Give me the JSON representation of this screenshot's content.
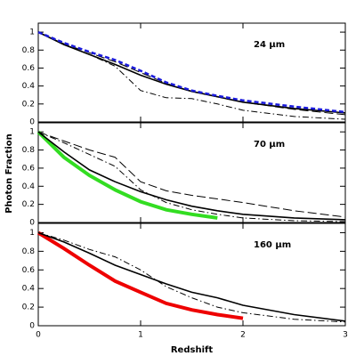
{
  "chart_data": [
    {
      "type": "line",
      "annotation": "24 μm",
      "x": [
        0,
        0.25,
        0.5,
        0.75,
        1,
        1.25,
        1.5,
        1.75,
        2,
        2.5,
        3
      ],
      "xlim": [
        0,
        3
      ],
      "ylim": [
        0,
        1.1
      ],
      "yticks": [
        0,
        0.2,
        0.4,
        0.6,
        0.8,
        1
      ],
      "series": [
        {
          "color": "#000000",
          "dash": "solid",
          "width": 1.6,
          "values": [
            1,
            0.86,
            0.75,
            0.64,
            0.52,
            0.42,
            0.34,
            0.28,
            0.22,
            0.15,
            0.1
          ]
        },
        {
          "color": "#000000",
          "dash": "long",
          "width": 1,
          "values": [
            1,
            0.87,
            0.77,
            0.67,
            0.55,
            0.43,
            0.34,
            0.28,
            0.22,
            0.14,
            0.08
          ]
        },
        {
          "color": "#000000",
          "dash": "dashdot",
          "width": 1,
          "values": [
            1,
            0.87,
            0.75,
            0.62,
            0.35,
            0.27,
            0.26,
            0.2,
            0.13,
            0.06,
            0.03
          ]
        },
        {
          "color": "#1a1adc",
          "dash": "short",
          "width": 2.5,
          "values": [
            1,
            0.88,
            0.78,
            0.69,
            0.57,
            0.44,
            0.35,
            0.29,
            0.24,
            0.17,
            0.11
          ]
        }
      ]
    },
    {
      "type": "line",
      "annotation": "70 μm",
      "ylabel": "Photon Fraction",
      "x": [
        0,
        0.25,
        0.5,
        0.75,
        1,
        1.25,
        1.5,
        1.75,
        2,
        2.5,
        3
      ],
      "xlim": [
        0,
        3
      ],
      "ylim": [
        0,
        1.1
      ],
      "yticks": [
        0,
        0.2,
        0.4,
        0.6,
        0.8,
        1
      ],
      "series": [
        {
          "color": "#33dd22",
          "dash": "solid",
          "width": 4,
          "values": [
            1,
            0.72,
            0.52,
            0.36,
            0.23,
            0.14,
            0.09,
            0.05,
            null,
            null,
            null
          ]
        },
        {
          "color": "#000000",
          "dash": "solid",
          "width": 1.6,
          "values": [
            1,
            0.78,
            0.58,
            0.45,
            0.34,
            0.25,
            0.18,
            0.13,
            0.09,
            0.05,
            0.03
          ]
        },
        {
          "color": "#000000",
          "dash": "long",
          "width": 1,
          "values": [
            1,
            0.9,
            0.8,
            0.72,
            0.45,
            0.35,
            0.3,
            0.26,
            0.22,
            0.13,
            0.06
          ]
        },
        {
          "color": "#000000",
          "dash": "dashdot",
          "width": 1,
          "values": [
            1,
            0.88,
            0.75,
            0.62,
            0.36,
            0.22,
            0.14,
            0.09,
            0.05,
            0.02,
            0.01
          ]
        }
      ]
    },
    {
      "type": "line",
      "annotation": "160 μm",
      "xlabel": "Redshift",
      "x": [
        0,
        0.25,
        0.5,
        0.75,
        1,
        1.25,
        1.5,
        1.75,
        2,
        2.5,
        3
      ],
      "xlim": [
        0,
        3
      ],
      "xticks": [
        0,
        1,
        2,
        3
      ],
      "ylim": [
        0,
        1.1
      ],
      "yticks": [
        0,
        0.2,
        0.4,
        0.6,
        0.8,
        1
      ],
      "series": [
        {
          "color": "#ee0000",
          "dash": "solid",
          "width": 4,
          "values": [
            1,
            0.83,
            0.65,
            0.48,
            0.36,
            0.24,
            0.17,
            0.12,
            0.08,
            null,
            null
          ]
        },
        {
          "color": "#000000",
          "dash": "solid",
          "width": 1.6,
          "values": [
            1,
            0.9,
            0.78,
            0.65,
            0.55,
            0.45,
            0.36,
            0.3,
            0.22,
            0.12,
            0.05
          ]
        },
        {
          "color": "#000000",
          "dash": "dashdot",
          "width": 1,
          "values": [
            1,
            0.92,
            0.82,
            0.74,
            0.6,
            0.42,
            0.3,
            0.2,
            0.14,
            0.07,
            0.04
          ]
        }
      ]
    }
  ]
}
